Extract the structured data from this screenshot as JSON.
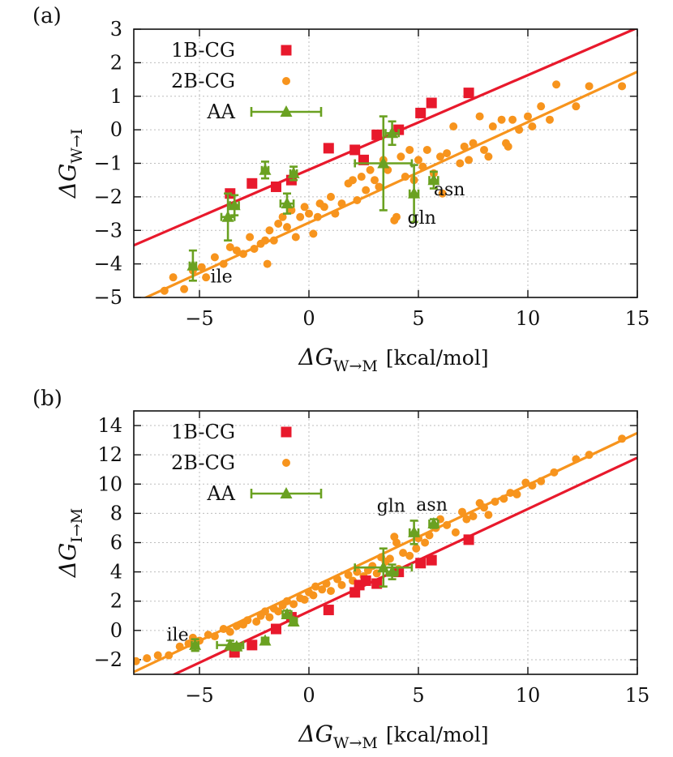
{
  "figure": {
    "panels": [
      {
        "panel_label": "(a)",
        "ylabel": {
          "symbol": "ΔG",
          "subscript": "W→I",
          "unit": ""
        },
        "xlabel": {
          "symbol": "ΔG",
          "subscript": "W→M",
          "unit": "[kcal/mol]"
        },
        "annotations": [
          {
            "text": "ile",
            "x": -4.5,
            "y": -4.55
          },
          {
            "text": "gln",
            "x": 4.5,
            "y": -2.8
          },
          {
            "text": "asn",
            "x": 5.7,
            "y": -1.95
          }
        ]
      },
      {
        "panel_label": "(b)",
        "ylabel": {
          "symbol": "ΔG",
          "subscript": "I→M",
          "unit": ""
        },
        "xlabel": {
          "symbol": "ΔG",
          "subscript": "W→M",
          "unit": "[kcal/mol]"
        },
        "annotations": [
          {
            "text": "ile",
            "x": -6.5,
            "y": -0.7
          },
          {
            "text": "gln",
            "x": 3.1,
            "y": 8.1
          },
          {
            "text": "asn",
            "x": 4.9,
            "y": 8.2
          }
        ]
      }
    ]
  },
  "chart_data": [
    {
      "type": "scatter",
      "title": "",
      "xlabel": "ΔG W→M [kcal/mol]",
      "ylabel": "ΔG W→I",
      "xlim": [
        -8,
        15
      ],
      "ylim": [
        -5,
        3
      ],
      "xticks": [
        -5,
        0,
        5,
        10,
        15
      ],
      "yticks": [
        -5,
        -4,
        -3,
        -2,
        -1,
        0,
        1,
        2,
        3
      ],
      "grid": true,
      "legend": {
        "position": "top-left"
      },
      "series": [
        {
          "name": "1B-CG",
          "marker": "square",
          "color": "#e8192c",
          "points": [
            [
              -3.6,
              -1.9
            ],
            [
              -2.6,
              -1.6
            ],
            [
              -1.5,
              -1.7
            ],
            [
              -0.8,
              -1.5
            ],
            [
              0.9,
              -0.55
            ],
            [
              2.1,
              -0.6
            ],
            [
              2.5,
              -0.9
            ],
            [
              3.1,
              -0.15
            ],
            [
              4.1,
              0.0
            ],
            [
              5.1,
              0.5
            ],
            [
              5.6,
              0.8
            ],
            [
              7.3,
              1.1
            ]
          ]
        },
        {
          "name": "2B-CG",
          "marker": "circle",
          "color": "#f7941d",
          "points": [
            [
              -6.6,
              -4.8
            ],
            [
              -6.2,
              -4.4
            ],
            [
              -5.7,
              -4.75
            ],
            [
              -5.3,
              -4.2
            ],
            [
              -4.9,
              -4.1
            ],
            [
              -4.7,
              -4.4
            ],
            [
              -4.3,
              -3.8
            ],
            [
              -3.9,
              -4.0
            ],
            [
              -3.6,
              -3.5
            ],
            [
              -3.3,
              -3.6
            ],
            [
              -3.0,
              -3.7
            ],
            [
              -2.7,
              -3.2
            ],
            [
              -2.5,
              -3.55
            ],
            [
              -2.2,
              -3.4
            ],
            [
              -2.0,
              -3.3
            ],
            [
              -1.8,
              -3.0
            ],
            [
              -1.9,
              -4.0
            ],
            [
              -1.6,
              -3.3
            ],
            [
              -1.4,
              -2.8
            ],
            [
              -1.2,
              -2.6
            ],
            [
              -1.0,
              -2.9
            ],
            [
              -0.8,
              -2.4
            ],
            [
              -0.6,
              -3.2
            ],
            [
              -0.4,
              -2.6
            ],
            [
              -0.2,
              -2.3
            ],
            [
              0.0,
              -2.5
            ],
            [
              0.2,
              -3.1
            ],
            [
              0.4,
              -2.6
            ],
            [
              0.5,
              -2.2
            ],
            [
              0.7,
              -2.3
            ],
            [
              1.0,
              -2.0
            ],
            [
              1.2,
              -2.5
            ],
            [
              1.5,
              -2.2
            ],
            [
              1.8,
              -1.6
            ],
            [
              2.0,
              -1.5
            ],
            [
              2.2,
              -2.1
            ],
            [
              2.4,
              -1.4
            ],
            [
              2.6,
              -1.8
            ],
            [
              2.8,
              -1.2
            ],
            [
              3.0,
              -1.5
            ],
            [
              3.2,
              -1.7
            ],
            [
              3.4,
              -0.9
            ],
            [
              3.6,
              -1.2
            ],
            [
              3.9,
              -2.7
            ],
            [
              4.0,
              -2.6
            ],
            [
              4.2,
              -0.8
            ],
            [
              4.4,
              -1.4
            ],
            [
              4.6,
              -0.6
            ],
            [
              4.8,
              -1.5
            ],
            [
              5.0,
              -0.9
            ],
            [
              5.2,
              -1.1
            ],
            [
              5.4,
              -0.6
            ],
            [
              5.7,
              -1.3
            ],
            [
              6.0,
              -0.8
            ],
            [
              6.1,
              -1.9
            ],
            [
              6.3,
              -0.7
            ],
            [
              6.6,
              0.1
            ],
            [
              6.9,
              -1.0
            ],
            [
              7.1,
              -0.5
            ],
            [
              7.3,
              -0.9
            ],
            [
              7.5,
              -0.4
            ],
            [
              7.8,
              0.4
            ],
            [
              8.0,
              -0.6
            ],
            [
              8.2,
              -0.8
            ],
            [
              8.4,
              0.1
            ],
            [
              8.8,
              0.3
            ],
            [
              9.0,
              -0.4
            ],
            [
              9.1,
              -0.5
            ],
            [
              9.3,
              0.3
            ],
            [
              9.6,
              0.0
            ],
            [
              10.0,
              0.4
            ],
            [
              10.2,
              0.1
            ],
            [
              10.6,
              0.7
            ],
            [
              11.0,
              0.3
            ],
            [
              11.3,
              1.35
            ],
            [
              12.2,
              0.7
            ],
            [
              12.8,
              1.3
            ],
            [
              14.3,
              1.3
            ]
          ]
        },
        {
          "name": "AA",
          "marker": "triangle",
          "color": "#6aa121",
          "points": [
            {
              "x": -5.3,
              "y": -4.05,
              "xerr": 0.15,
              "yerr": 0.45
            },
            {
              "x": -3.7,
              "y": -2.6,
              "xerr": 0.3,
              "yerr": 0.7
            },
            {
              "x": -3.4,
              "y": -2.25,
              "xerr": 0.2,
              "yerr": 0.3
            },
            {
              "x": -2.0,
              "y": -1.2,
              "xerr": 0.15,
              "yerr": 0.25
            },
            {
              "x": -1.0,
              "y": -2.2,
              "xerr": 0.3,
              "yerr": 0.3
            },
            {
              "x": -0.7,
              "y": -1.3,
              "xerr": 0.15,
              "yerr": 0.2
            },
            {
              "x": 3.4,
              "y": -1.0,
              "xerr": 1.3,
              "yerr": 1.4
            },
            {
              "x": 3.8,
              "y": -0.1,
              "xerr": 0.3,
              "yerr": 0.35
            },
            {
              "x": 4.8,
              "y": -1.9,
              "xerr": 0.2,
              "yerr": 0.85
            },
            {
              "x": 5.7,
              "y": -1.5,
              "xerr": 0.2,
              "yerr": 0.25
            }
          ]
        }
      ],
      "fits": [
        {
          "series": "1B-CG",
          "color": "#e8192c",
          "slope": 0.282,
          "intercept": -1.19
        },
        {
          "series": "2B-CG",
          "color": "#f7941d",
          "slope": 0.3,
          "intercept": -2.77
        }
      ]
    },
    {
      "type": "scatter",
      "title": "",
      "xlabel": "ΔG W→M [kcal/mol]",
      "ylabel": "ΔG I→M",
      "xlim": [
        -8,
        15
      ],
      "ylim": [
        -3,
        15
      ],
      "xticks": [
        -5,
        0,
        5,
        10,
        15
      ],
      "yticks": [
        -2,
        0,
        2,
        4,
        6,
        8,
        10,
        12,
        14
      ],
      "grid": true,
      "legend": {
        "position": "top-left"
      },
      "series": [
        {
          "name": "1B-CG",
          "marker": "square",
          "color": "#e8192c",
          "points": [
            [
              -3.4,
              -1.5
            ],
            [
              -2.6,
              -1.0
            ],
            [
              -1.5,
              0.1
            ],
            [
              -0.8,
              0.9
            ],
            [
              0.9,
              1.4
            ],
            [
              2.1,
              2.6
            ],
            [
              2.3,
              3.1
            ],
            [
              2.6,
              3.4
            ],
            [
              3.1,
              3.2
            ],
            [
              4.1,
              4.0
            ],
            [
              5.1,
              4.6
            ],
            [
              5.6,
              4.8
            ],
            [
              7.3,
              6.2
            ]
          ]
        },
        {
          "name": "2B-CG",
          "marker": "circle",
          "color": "#f7941d",
          "points": [
            [
              -7.9,
              -2.1
            ],
            [
              -7.4,
              -1.9
            ],
            [
              -6.9,
              -1.7
            ],
            [
              -6.4,
              -1.7
            ],
            [
              -5.9,
              -1.1
            ],
            [
              -5.5,
              -0.9
            ],
            [
              -5.3,
              -0.5
            ],
            [
              -5.0,
              -0.7
            ],
            [
              -4.6,
              -0.3
            ],
            [
              -4.3,
              -0.4
            ],
            [
              -3.9,
              0.1
            ],
            [
              -3.6,
              -0.1
            ],
            [
              -3.3,
              0.3
            ],
            [
              -3.0,
              0.4
            ],
            [
              -2.8,
              0.7
            ],
            [
              -2.4,
              0.6
            ],
            [
              -2.2,
              1.0
            ],
            [
              -2.0,
              1.3
            ],
            [
              -1.8,
              0.9
            ],
            [
              -1.6,
              1.5
            ],
            [
              -1.4,
              1.3
            ],
            [
              -1.2,
              1.7
            ],
            [
              -1.0,
              2.0
            ],
            [
              -0.7,
              1.8
            ],
            [
              -0.4,
              2.2
            ],
            [
              -0.2,
              2.1
            ],
            [
              0.0,
              2.6
            ],
            [
              0.2,
              2.4
            ],
            [
              0.3,
              3.0
            ],
            [
              0.6,
              2.8
            ],
            [
              0.8,
              3.2
            ],
            [
              1.0,
              2.7
            ],
            [
              1.3,
              3.5
            ],
            [
              1.5,
              3.1
            ],
            [
              1.8,
              3.8
            ],
            [
              2.0,
              3.4
            ],
            [
              2.2,
              4.0
            ],
            [
              2.5,
              3.7
            ],
            [
              2.7,
              4.1
            ],
            [
              2.9,
              4.4
            ],
            [
              3.1,
              3.9
            ],
            [
              3.3,
              5.0
            ],
            [
              3.5,
              4.7
            ],
            [
              3.7,
              4.9
            ],
            [
              3.9,
              6.4
            ],
            [
              4.0,
              6.0
            ],
            [
              4.1,
              4.2
            ],
            [
              4.3,
              5.3
            ],
            [
              4.6,
              5.1
            ],
            [
              4.9,
              5.6
            ],
            [
              5.0,
              6.3
            ],
            [
              5.3,
              6.0
            ],
            [
              5.5,
              6.5
            ],
            [
              5.8,
              7.0
            ],
            [
              6.0,
              7.6
            ],
            [
              6.3,
              7.2
            ],
            [
              6.7,
              6.7
            ],
            [
              7.0,
              8.1
            ],
            [
              7.2,
              7.6
            ],
            [
              7.5,
              7.8
            ],
            [
              7.8,
              8.7
            ],
            [
              8.0,
              8.4
            ],
            [
              8.2,
              7.9
            ],
            [
              8.5,
              8.8
            ],
            [
              8.9,
              9.0
            ],
            [
              9.2,
              9.4
            ],
            [
              9.5,
              9.3
            ],
            [
              9.9,
              10.1
            ],
            [
              10.2,
              9.9
            ],
            [
              10.6,
              10.2
            ],
            [
              11.2,
              10.8
            ],
            [
              12.2,
              11.7
            ],
            [
              12.8,
              12.0
            ],
            [
              14.3,
              13.1
            ]
          ]
        },
        {
          "name": "AA",
          "marker": "triangle",
          "color": "#6aa121",
          "points": [
            {
              "x": -5.2,
              "y": -1.0,
              "xerr": 0.15,
              "yerr": 0.4
            },
            {
              "x": -3.6,
              "y": -1.0,
              "xerr": 0.6,
              "yerr": 0.3
            },
            {
              "x": -3.3,
              "y": -1.1,
              "xerr": 0.2,
              "yerr": 0.2
            },
            {
              "x": -2.0,
              "y": -0.7,
              "xerr": 0.15,
              "yerr": 0.2
            },
            {
              "x": -1.0,
              "y": 1.1,
              "xerr": 0.2,
              "yerr": 0.25
            },
            {
              "x": -0.7,
              "y": 0.6,
              "xerr": 0.15,
              "yerr": 0.25
            },
            {
              "x": 3.4,
              "y": 4.3,
              "xerr": 1.3,
              "yerr": 1.3
            },
            {
              "x": 3.8,
              "y": 4.0,
              "xerr": 0.25,
              "yerr": 0.5
            },
            {
              "x": 4.8,
              "y": 6.7,
              "xerr": 0.2,
              "yerr": 0.8
            },
            {
              "x": 5.7,
              "y": 7.3,
              "xerr": 0.2,
              "yerr": 0.3
            }
          ]
        }
      ],
      "fits": [
        {
          "series": "1B-CG",
          "color": "#e8192c",
          "slope": 0.7,
          "intercept": 1.3
        },
        {
          "series": "2B-CG",
          "color": "#f7941d",
          "slope": 0.71,
          "intercept": 2.84
        }
      ]
    }
  ]
}
